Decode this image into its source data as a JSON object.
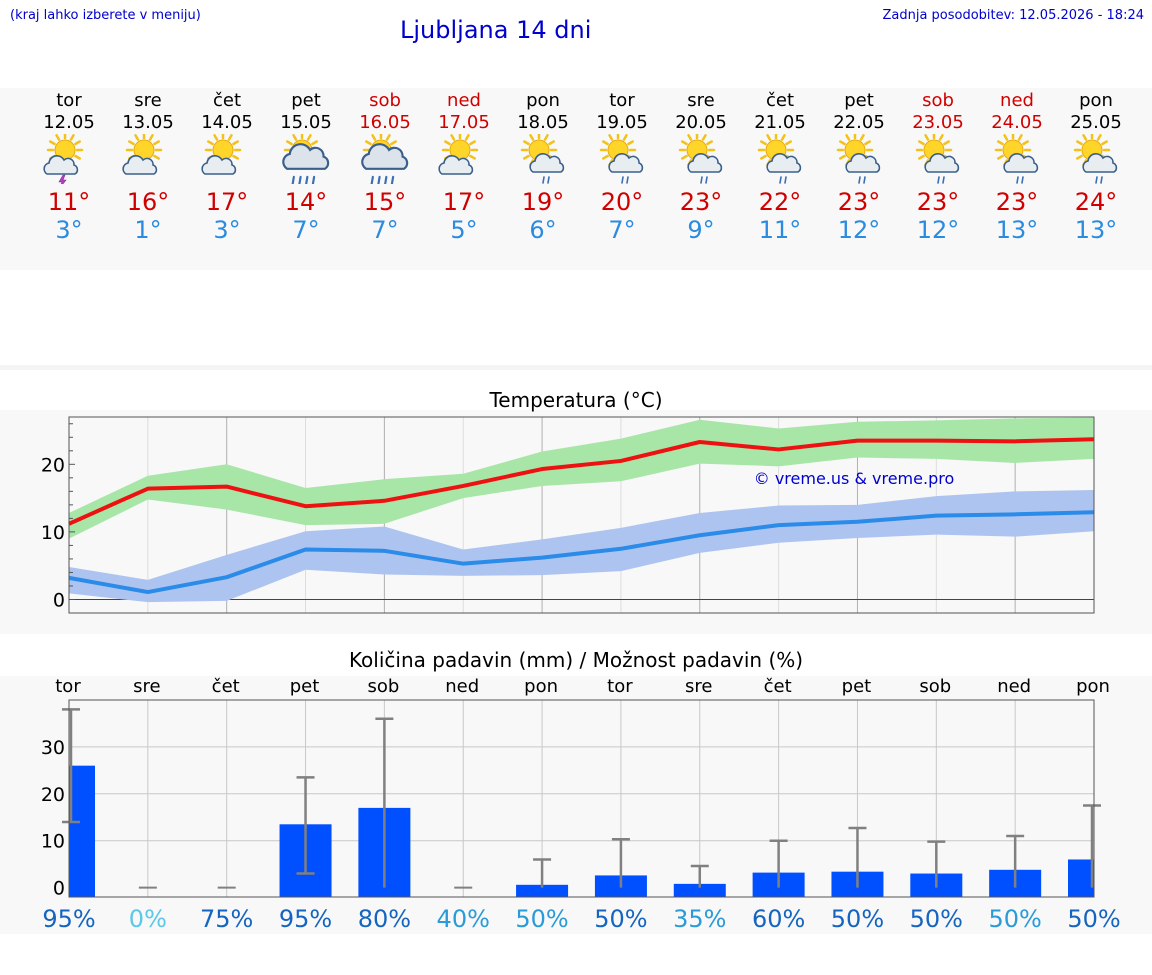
{
  "header": {
    "note": "(kraj lahko izberete v meniju)",
    "title": "Ljubljana 14 dni",
    "update": "Zadnja posodobitev: 12.05.2026 - 18:24"
  },
  "days": [
    {
      "name": "tor",
      "date": "12.05",
      "tmax": "11°",
      "tmin": "3°",
      "icon": "sun-cloud-thunder-icon",
      "weekend": false
    },
    {
      "name": "sre",
      "date": "13.05",
      "tmax": "16°",
      "tmin": "1°",
      "icon": "sun-cloud-icon",
      "weekend": false
    },
    {
      "name": "čet",
      "date": "14.05",
      "tmax": "17°",
      "tmin": "3°",
      "icon": "sun-cloud-icon",
      "weekend": false
    },
    {
      "name": "pet",
      "date": "15.05",
      "tmax": "14°",
      "tmin": "7°",
      "icon": "sun-cloud-rain-heavy-icon",
      "weekend": false
    },
    {
      "name": "sob",
      "date": "16.05",
      "tmax": "15°",
      "tmin": "7°",
      "icon": "sun-cloud-rain-heavy-icon",
      "weekend": true
    },
    {
      "name": "ned",
      "date": "17.05",
      "tmax": "17°",
      "tmin": "5°",
      "icon": "sun-cloud-icon",
      "weekend": true
    },
    {
      "name": "pon",
      "date": "18.05",
      "tmax": "19°",
      "tmin": "6°",
      "icon": "sun-cloud-rain-icon",
      "weekend": false
    },
    {
      "name": "tor",
      "date": "19.05",
      "tmax": "20°",
      "tmin": "7°",
      "icon": "sun-cloud-rain-light-icon",
      "weekend": false
    },
    {
      "name": "sre",
      "date": "20.05",
      "tmax": "23°",
      "tmin": "9°",
      "icon": "sun-cloud-rain-light-icon",
      "weekend": false
    },
    {
      "name": "čet",
      "date": "21.05",
      "tmax": "22°",
      "tmin": "11°",
      "icon": "sun-cloud-rain-light-icon",
      "weekend": false
    },
    {
      "name": "pet",
      "date": "22.05",
      "tmax": "23°",
      "tmin": "12°",
      "icon": "sun-cloud-rain-light-icon",
      "weekend": false
    },
    {
      "name": "sob",
      "date": "23.05",
      "tmax": "23°",
      "tmin": "12°",
      "icon": "sun-cloud-rain-light-icon",
      "weekend": true
    },
    {
      "name": "ned",
      "date": "24.05",
      "tmax": "23°",
      "tmin": "13°",
      "icon": "sun-cloud-rain-light-icon",
      "weekend": true
    },
    {
      "name": "pon",
      "date": "25.05",
      "tmax": "24°",
      "tmin": "13°",
      "icon": "sun-cloud-rain-light-icon",
      "weekend": false
    }
  ],
  "colors": {
    "tmax_line": "#ee1111",
    "tmax_band": "#a8e6a8",
    "tmin_line": "#2a8be8",
    "tmin_band": "#aec4f0",
    "bar": "#0050ff",
    "errorbar": "#808080",
    "weekend": "#d10000",
    "link": "#0000cc"
  },
  "chart_data": [
    {
      "type": "line",
      "title": "Temperatura (°C)",
      "watermark": "© vreme.us & vreme.pro",
      "x": [
        0,
        1,
        2,
        3,
        4,
        5,
        6,
        7,
        8,
        9,
        10,
        11,
        12,
        13
      ],
      "ylim": [
        -2,
        27
      ],
      "yticks": [
        0,
        10,
        20
      ],
      "grid": true,
      "series": [
        {
          "values": [
            11.2,
            16.4,
            16.7,
            13.8,
            14.6,
            16.8,
            19.3,
            20.5,
            23.3,
            22.2,
            23.5,
            23.5,
            23.4,
            23.7
          ],
          "band_low": [
            9.0,
            14.8,
            13.3,
            11.0,
            11.2,
            15.0,
            16.8,
            17.5,
            20.1,
            19.7,
            21.0,
            20.8,
            20.2,
            20.8
          ],
          "band_high": [
            12.8,
            18.3,
            20.0,
            16.5,
            17.8,
            18.6,
            21.9,
            23.8,
            26.6,
            25.3,
            26.3,
            26.5,
            26.8,
            26.9
          ]
        },
        {
          "values": [
            3.2,
            1.1,
            3.3,
            7.4,
            7.2,
            5.3,
            6.2,
            7.5,
            9.5,
            11.0,
            11.5,
            12.4,
            12.6,
            12.9
          ],
          "band_low": [
            0.9,
            -0.4,
            -0.2,
            4.4,
            3.7,
            3.5,
            3.6,
            4.2,
            6.9,
            8.4,
            9.1,
            9.6,
            9.3,
            10.1
          ],
          "band_high": [
            4.8,
            2.9,
            6.6,
            10.1,
            10.8,
            7.4,
            8.9,
            10.6,
            12.8,
            13.9,
            14.0,
            15.3,
            16.0,
            16.2
          ]
        }
      ]
    },
    {
      "type": "bar",
      "title": "Količina padavin (mm) / Možnost padavin (%)",
      "categories": [
        "tor",
        "sre",
        "čet",
        "pet",
        "sob",
        "ned",
        "pon",
        "tor",
        "sre",
        "čet",
        "pet",
        "sob",
        "ned",
        "pon"
      ],
      "values": [
        26,
        0,
        0,
        13.5,
        17,
        0,
        0.6,
        2.6,
        0.8,
        3.2,
        3.4,
        3,
        3.8,
        6
      ],
      "err_low": [
        14,
        0,
        0,
        3,
        0,
        0,
        0,
        0,
        0,
        0,
        0,
        0,
        0,
        0
      ],
      "err_high": [
        38,
        0,
        0,
        23.5,
        36,
        0,
        6,
        10.3,
        4.6,
        10,
        12.7,
        9.8,
        11,
        17.5
      ],
      "ylim": [
        -2,
        40
      ],
      "yticks": [
        0,
        10,
        20,
        30
      ],
      "probability": [
        "95%",
        "0%",
        "75%",
        "95%",
        "80%",
        "40%",
        "50%",
        "50%",
        "35%",
        "60%",
        "50%",
        "50%",
        "50%",
        "50%"
      ],
      "probability_colors": [
        "#1565c0",
        "#5bc8e8",
        "#1565c0",
        "#1565c0",
        "#1565c0",
        "#2a9ad8",
        "#2a9ad8",
        "#1565c0",
        "#2a9ad8",
        "#1565c0",
        "#1565c0",
        "#1565c0",
        "#2a9ad8",
        "#1565c0"
      ]
    }
  ]
}
